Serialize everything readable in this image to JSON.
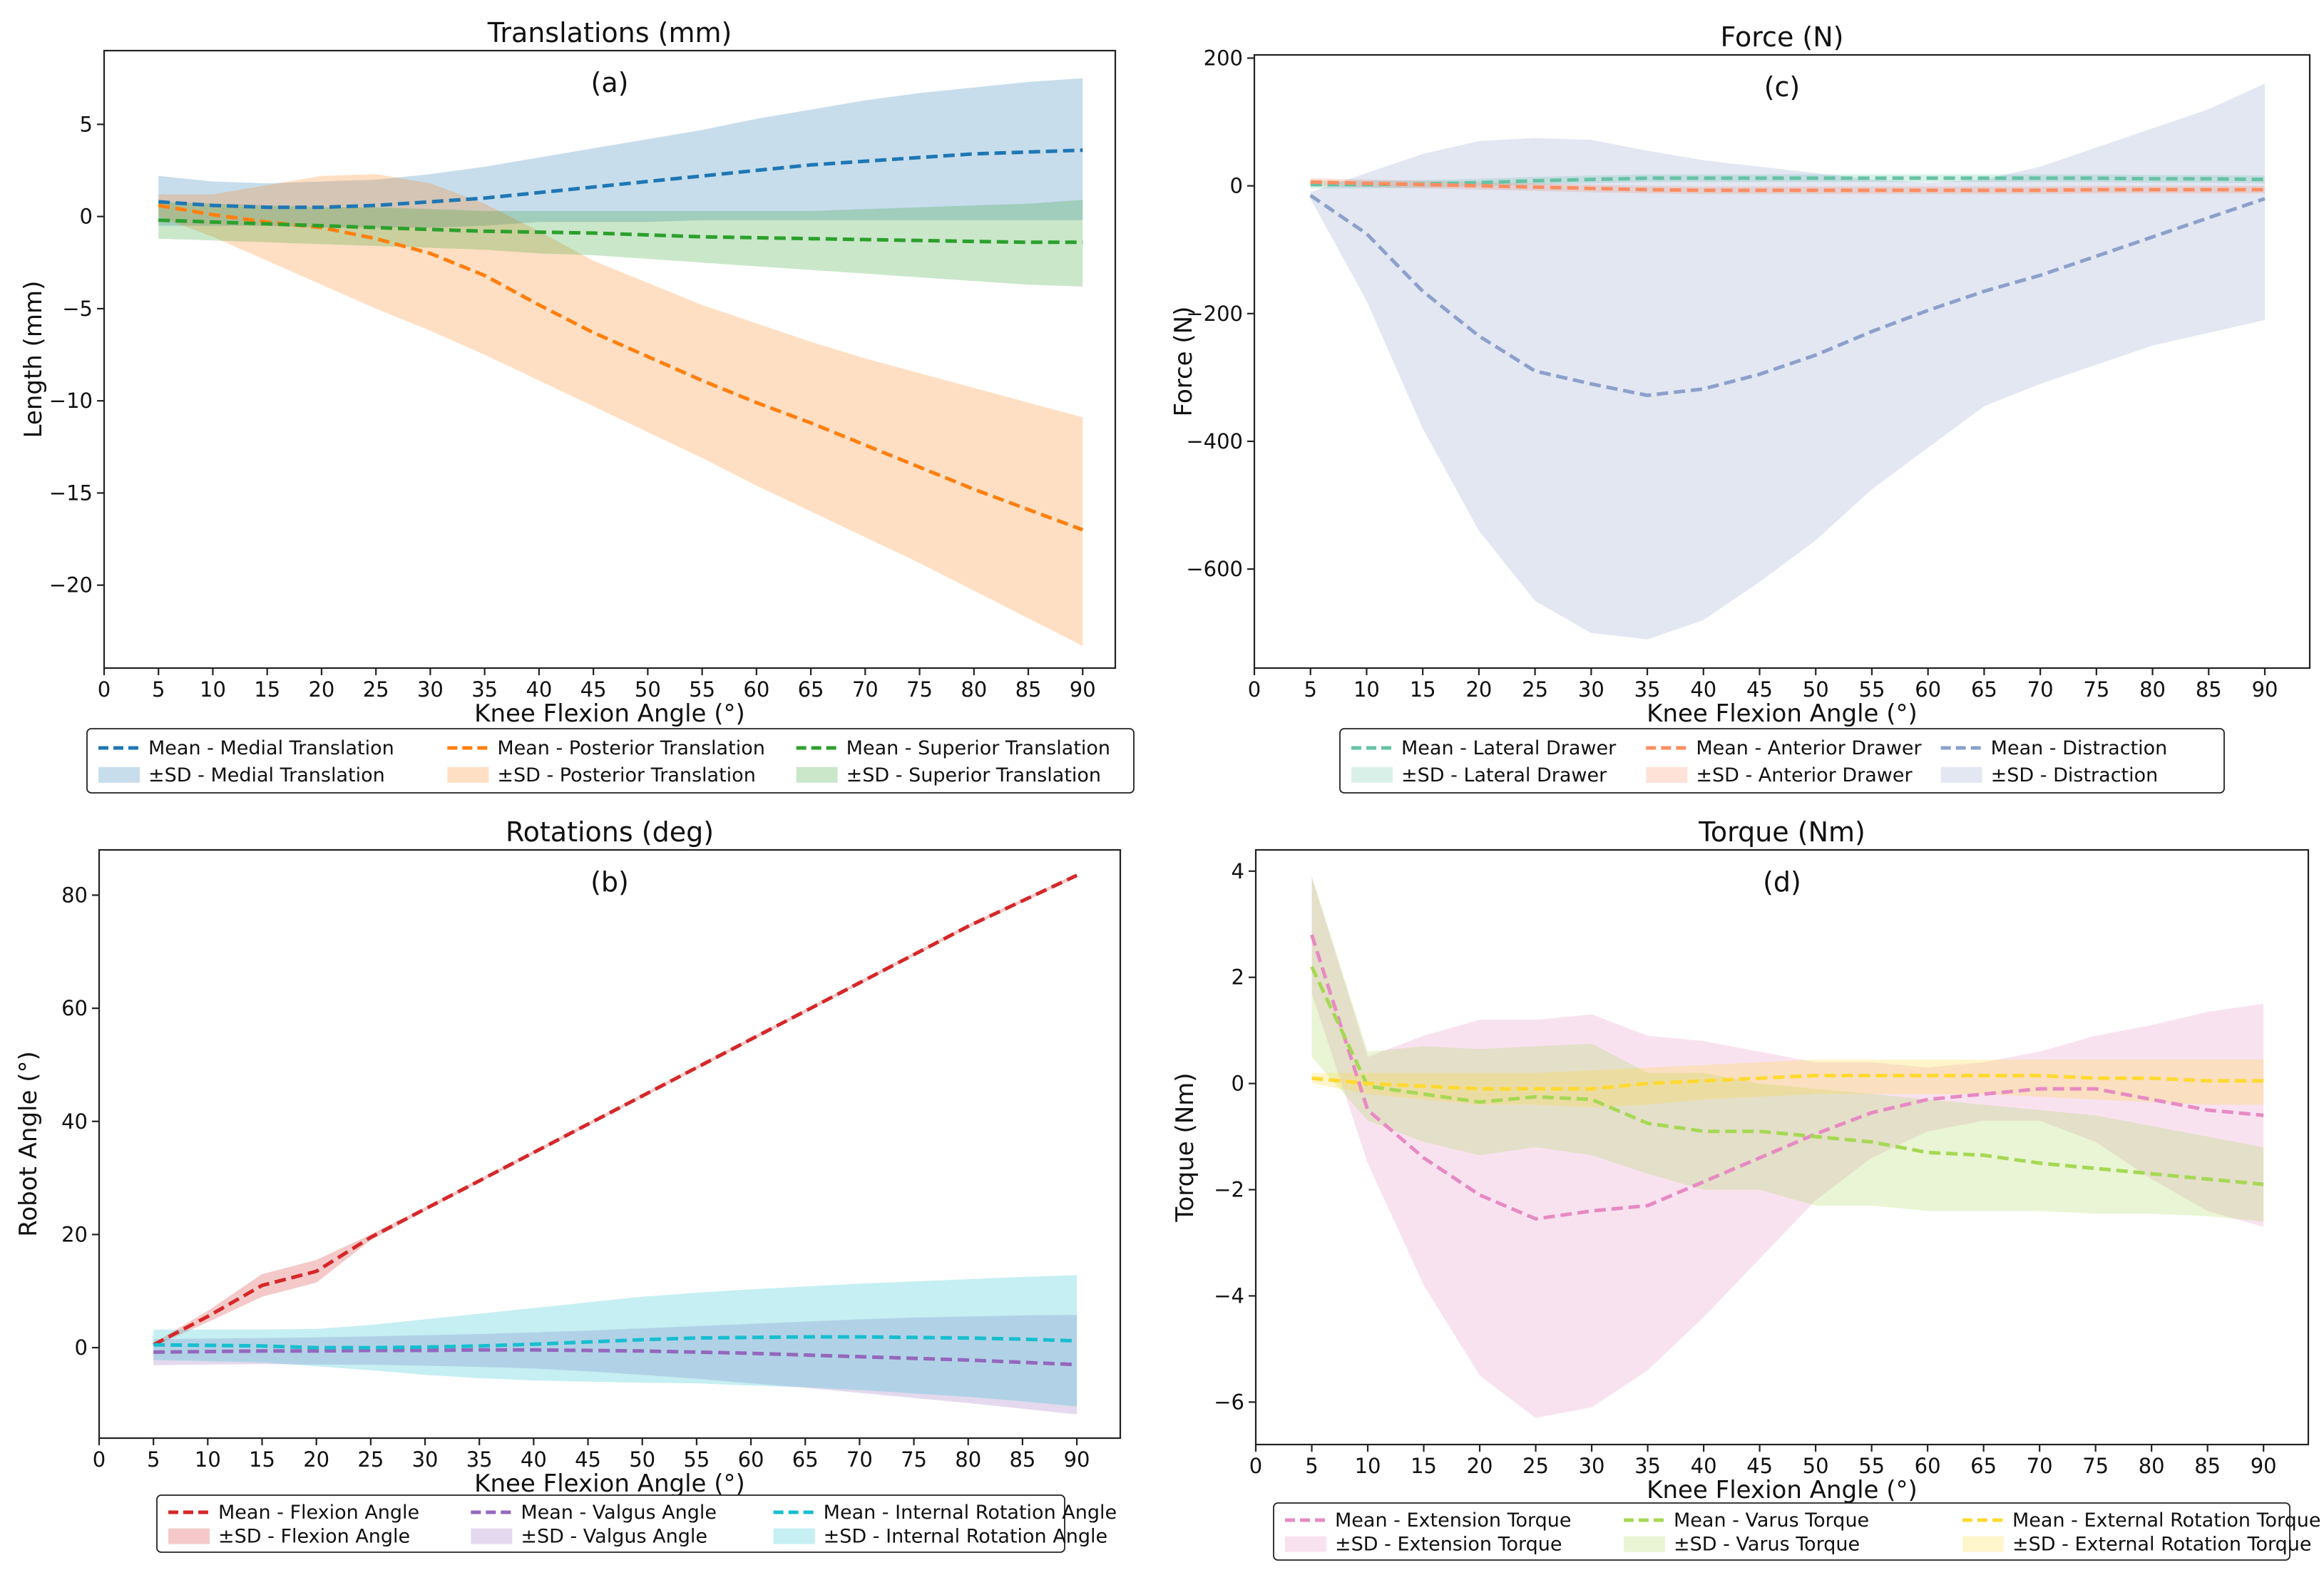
{
  "chart_data": [
    {
      "type": "line",
      "id": "translations",
      "title": "Translations (mm)",
      "panel_label": "(a)",
      "xlabel": "Knee Flexion Angle (°)",
      "ylabel": "Length (mm)",
      "xlim": [
        0,
        93
      ],
      "ylim": [
        -24.5,
        9
      ],
      "xticks": [
        0,
        5,
        10,
        15,
        20,
        25,
        30,
        35,
        40,
        45,
        50,
        55,
        60,
        65,
        70,
        75,
        80,
        85,
        90
      ],
      "yticks": [
        5,
        0,
        -5,
        -10,
        -15,
        -20
      ],
      "ytick_labels": [
        "5",
        "0",
        "−5",
        "−10",
        "−15",
        "−20"
      ],
      "x": [
        5,
        10,
        15,
        20,
        25,
        30,
        35,
        40,
        45,
        50,
        55,
        60,
        65,
        70,
        75,
        80,
        85,
        90
      ],
      "series": [
        {
          "name": "Medial Translation",
          "color": "#1f77b4",
          "mean_label": "Mean - Medial Translation",
          "sd_label": "±SD - Medial Translation",
          "mean": [
            0.8,
            0.6,
            0.5,
            0.5,
            0.6,
            0.8,
            1.0,
            1.3,
            1.6,
            1.9,
            2.2,
            2.5,
            2.8,
            3.0,
            3.2,
            3.4,
            3.5,
            3.6
          ],
          "upper": [
            2.2,
            1.9,
            1.8,
            1.9,
            2.0,
            2.3,
            2.7,
            3.2,
            3.7,
            4.2,
            4.7,
            5.3,
            5.8,
            6.3,
            6.7,
            7.0,
            7.3,
            7.5
          ],
          "lower": [
            -0.5,
            -0.5,
            -0.5,
            -0.6,
            -0.6,
            -0.6,
            -0.5,
            -0.3,
            -0.3,
            -0.3,
            -0.2,
            -0.2,
            -0.2,
            -0.2,
            -0.2,
            -0.2,
            -0.2,
            -0.2
          ]
        },
        {
          "name": "Posterior Translation",
          "color": "#ff7f0e",
          "mean_label": "Mean - Posterior Translation",
          "sd_label": "±SD - Posterior Translation",
          "mean": [
            0.6,
            0.1,
            -0.3,
            -0.6,
            -1.2,
            -2.0,
            -3.2,
            -4.8,
            -6.3,
            -7.6,
            -8.9,
            -10.1,
            -11.2,
            -12.4,
            -13.6,
            -14.8,
            -15.9,
            -17.0
          ],
          "upper": [
            1.2,
            1.2,
            1.7,
            2.2,
            2.3,
            1.8,
            0.7,
            -0.8,
            -2.4,
            -3.6,
            -4.8,
            -5.8,
            -6.8,
            -7.7,
            -8.5,
            -9.3,
            -10.1,
            -10.9
          ],
          "lower": [
            0.0,
            -1.1,
            -2.4,
            -3.7,
            -5.0,
            -6.2,
            -7.5,
            -8.9,
            -10.3,
            -11.7,
            -13.1,
            -14.6,
            -16.0,
            -17.4,
            -18.8,
            -20.3,
            -21.8,
            -23.3
          ]
        },
        {
          "name": "Superior Translation",
          "color": "#2ca02c",
          "mean_label": "Mean - Superior Translation",
          "sd_label": "±SD - Superior Translation",
          "mean": [
            -0.2,
            -0.3,
            -0.4,
            -0.5,
            -0.6,
            -0.7,
            -0.8,
            -0.85,
            -0.9,
            -1.0,
            -1.1,
            -1.15,
            -1.2,
            -1.25,
            -1.3,
            -1.35,
            -1.4,
            -1.4
          ],
          "upper": [
            0.8,
            0.7,
            0.6,
            0.5,
            0.5,
            0.4,
            0.3,
            0.3,
            0.3,
            0.3,
            0.3,
            0.3,
            0.3,
            0.4,
            0.5,
            0.6,
            0.7,
            0.9
          ],
          "lower": [
            -1.2,
            -1.3,
            -1.4,
            -1.5,
            -1.6,
            -1.7,
            -1.8,
            -2.0,
            -2.1,
            -2.3,
            -2.5,
            -2.7,
            -2.9,
            -3.1,
            -3.3,
            -3.5,
            -3.7,
            -3.8
          ]
        }
      ]
    },
    {
      "type": "line",
      "id": "force",
      "title": "Force (N)",
      "panel_label": "(c)",
      "xlabel": "Knee Flexion Angle (°)",
      "ylabel": "Force (N)",
      "xlim": [
        0,
        94
      ],
      "ylim": [
        -755,
        205
      ],
      "xticks": [
        0,
        5,
        10,
        15,
        20,
        25,
        30,
        35,
        40,
        45,
        50,
        55,
        60,
        65,
        70,
        75,
        80,
        85,
        90
      ],
      "yticks": [
        200,
        0,
        -200,
        -400,
        -600
      ],
      "ytick_labels": [
        "200",
        "0",
        "−200",
        "−400",
        "−600"
      ],
      "x": [
        5,
        10,
        15,
        20,
        25,
        30,
        35,
        40,
        45,
        50,
        55,
        60,
        65,
        70,
        75,
        80,
        85,
        90
      ],
      "series": [
        {
          "name": "Lateral Drawer",
          "color": "#66c2a5",
          "mean_label": "Mean - Lateral Drawer",
          "sd_label": "±SD - Lateral Drawer",
          "mean": [
            2,
            2,
            3,
            5,
            8,
            10,
            12,
            12,
            12,
            12,
            12,
            12,
            12,
            12,
            12,
            11,
            11,
            10
          ],
          "upper": [
            8,
            8,
            9,
            11,
            14,
            16,
            18,
            18,
            18,
            18,
            18,
            18,
            18,
            18,
            18,
            17,
            17,
            16
          ],
          "lower": [
            -4,
            -4,
            -3,
            -1,
            2,
            4,
            6,
            6,
            6,
            6,
            6,
            6,
            6,
            6,
            6,
            5,
            5,
            4
          ]
        },
        {
          "name": "Anterior Drawer",
          "color": "#fc8d62",
          "mean_label": "Mean - Anterior Drawer",
          "sd_label": "±SD - Anterior Drawer",
          "mean": [
            6,
            4,
            2,
            0,
            -2,
            -4,
            -6,
            -7,
            -7,
            -7,
            -7,
            -7,
            -7,
            -7,
            -6,
            -6,
            -6,
            -6
          ],
          "upper": [
            12,
            10,
            8,
            6,
            4,
            2,
            0,
            -1,
            -1,
            -1,
            -1,
            -1,
            -1,
            -1,
            0,
            0,
            0,
            0
          ],
          "lower": [
            0,
            -2,
            -4,
            -6,
            -8,
            -10,
            -12,
            -13,
            -13,
            -13,
            -13,
            -13,
            -13,
            -13,
            -12,
            -12,
            -12,
            -12
          ]
        },
        {
          "name": "Distraction",
          "color": "#8da0cb",
          "mean_label": "Mean - Distraction",
          "sd_label": "±SD - Distraction",
          "mean": [
            -15,
            -75,
            -165,
            -235,
            -290,
            -310,
            -328,
            -318,
            -295,
            -265,
            -228,
            -195,
            -165,
            -140,
            -110,
            -80,
            -50,
            -20
          ],
          "upper": [
            -10,
            20,
            50,
            70,
            75,
            72,
            55,
            40,
            30,
            20,
            10,
            5,
            10,
            30,
            60,
            90,
            120,
            160
          ],
          "lower": [
            -20,
            -180,
            -380,
            -540,
            -650,
            -700,
            -710,
            -680,
            -620,
            -555,
            -475,
            -410,
            -345,
            -310,
            -280,
            -250,
            -230,
            -210
          ]
        }
      ]
    },
    {
      "type": "line",
      "id": "rotations",
      "title": "Rotations (deg)",
      "panel_label": "(b)",
      "xlabel": "Knee Flexion Angle (°)",
      "ylabel": "Robot Angle (°)",
      "xlim": [
        0,
        94
      ],
      "ylim": [
        -16,
        88
      ],
      "xticks": [
        0,
        5,
        10,
        15,
        20,
        25,
        30,
        35,
        40,
        45,
        50,
        55,
        60,
        65,
        70,
        75,
        80,
        85,
        90
      ],
      "yticks": [
        80,
        60,
        40,
        20,
        0
      ],
      "ytick_labels": [
        "80",
        "60",
        "40",
        "20",
        "0"
      ],
      "x": [
        5,
        10,
        15,
        20,
        25,
        30,
        35,
        40,
        45,
        50,
        55,
        60,
        65,
        70,
        75,
        80,
        85,
        90
      ],
      "series": [
        {
          "name": "Flexion Angle",
          "color": "#d62728",
          "mean_label": "Mean - Flexion Angle",
          "sd_label": "±SD - Flexion Angle",
          "mean": [
            0.5,
            5.5,
            11,
            13.5,
            19.5,
            24.5,
            29.5,
            34.5,
            39.5,
            44.5,
            49.5,
            54.5,
            59.5,
            64.5,
            69.5,
            74.5,
            79,
            83.5
          ],
          "upper": [
            0.8,
            6.5,
            13,
            15.5,
            20,
            24.8,
            29.8,
            34.8,
            39.8,
            44.8,
            49.8,
            54.8,
            59.8,
            64.8,
            69.8,
            74.8,
            79.3,
            83.8
          ],
          "lower": [
            0.2,
            4.5,
            9,
            11.5,
            19,
            24.2,
            29.2,
            34.2,
            39.2,
            44.2,
            49.2,
            54.2,
            59.2,
            64.2,
            69.2,
            74.2,
            78.7,
            83.2
          ]
        },
        {
          "name": "Valgus Angle",
          "color": "#9467bd",
          "mean_label": "Mean - Valgus Angle",
          "sd_label": "±SD - Valgus Angle",
          "mean": [
            -0.8,
            -0.7,
            -0.6,
            -0.6,
            -0.5,
            -0.5,
            -0.4,
            -0.4,
            -0.5,
            -0.6,
            -0.8,
            -1.0,
            -1.3,
            -1.6,
            -1.9,
            -2.2,
            -2.6,
            -3.0
          ],
          "upper": [
            1.5,
            1.6,
            1.7,
            1.8,
            2.0,
            2.2,
            2.4,
            2.7,
            3.0,
            3.4,
            3.8,
            4.2,
            4.6,
            5.0,
            5.3,
            5.5,
            5.7,
            5.8
          ],
          "lower": [
            -3.1,
            -3.0,
            -2.9,
            -3.0,
            -3.0,
            -3.2,
            -3.4,
            -3.7,
            -4.2,
            -4.8,
            -5.5,
            -6.3,
            -7.1,
            -8.0,
            -8.9,
            -9.8,
            -10.8,
            -11.8
          ]
        },
        {
          "name": "Internal Rotation Angle",
          "color": "#17becf",
          "mean_label": "Mean - Internal Rotation Angle",
          "sd_label": "±SD - Internal Rotation Angle",
          "mean": [
            0.5,
            0.4,
            0.3,
            0.0,
            0.0,
            0.1,
            0.3,
            0.6,
            1.0,
            1.4,
            1.7,
            1.8,
            1.9,
            1.9,
            1.8,
            1.7,
            1.5,
            1.2
          ],
          "upper": [
            3.2,
            3.2,
            3.2,
            3.3,
            4.0,
            5.0,
            6.0,
            7.0,
            8.0,
            9.0,
            9.7,
            10.3,
            10.8,
            11.3,
            11.7,
            12.1,
            12.5,
            12.8
          ],
          "lower": [
            -2.2,
            -2.4,
            -2.6,
            -3.3,
            -4.0,
            -4.8,
            -5.4,
            -5.8,
            -6.0,
            -6.2,
            -6.3,
            -6.7,
            -7.0,
            -7.5,
            -8.1,
            -8.7,
            -9.5,
            -10.4
          ]
        }
      ]
    },
    {
      "type": "line",
      "id": "torque",
      "title": "Torque (Nm)",
      "panel_label": "(d)",
      "xlabel": "Knee Flexion Angle (°)",
      "ylabel": "Torque (Nm)",
      "xlim": [
        0,
        94
      ],
      "ylim": [
        -6.8,
        4.4
      ],
      "xticks": [
        0,
        5,
        10,
        15,
        20,
        25,
        30,
        35,
        40,
        45,
        50,
        55,
        60,
        65,
        70,
        75,
        80,
        85,
        90
      ],
      "yticks": [
        4,
        2,
        0,
        -2,
        -4,
        -6
      ],
      "ytick_labels": [
        "4",
        "2",
        "0",
        "−2",
        "−4",
        "−6"
      ],
      "x": [
        5,
        10,
        15,
        20,
        25,
        30,
        35,
        40,
        45,
        50,
        55,
        60,
        65,
        70,
        75,
        80,
        85,
        90
      ],
      "series": [
        {
          "name": "Extension Torque",
          "color": "#e78ac3",
          "mean_label": "Mean - Extension Torque",
          "sd_label": "±SD - Extension Torque",
          "mean": [
            2.8,
            -0.5,
            -1.4,
            -2.1,
            -2.55,
            -2.4,
            -2.3,
            -1.85,
            -1.4,
            -0.95,
            -0.55,
            -0.3,
            -0.2,
            -0.1,
            -0.1,
            -0.3,
            -0.5,
            -0.6
          ],
          "upper": [
            3.9,
            0.5,
            0.9,
            1.2,
            1.2,
            1.3,
            0.9,
            0.8,
            0.6,
            0.4,
            0.4,
            0.3,
            0.4,
            0.6,
            0.9,
            1.1,
            1.35,
            1.5
          ],
          "lower": [
            1.7,
            -1.5,
            -3.8,
            -5.5,
            -6.3,
            -6.1,
            -5.4,
            -4.4,
            -3.3,
            -2.2,
            -1.4,
            -0.9,
            -0.7,
            -0.7,
            -1.1,
            -1.8,
            -2.4,
            -2.7
          ]
        },
        {
          "name": "Varus Torque",
          "color": "#a6d854",
          "mean_label": "Mean - Varus Torque",
          "sd_label": "±SD - Varus Torque",
          "mean": [
            2.2,
            -0.05,
            -0.2,
            -0.35,
            -0.25,
            -0.3,
            -0.75,
            -0.9,
            -0.9,
            -1.0,
            -1.1,
            -1.3,
            -1.35,
            -1.5,
            -1.6,
            -1.7,
            -1.8,
            -1.9
          ],
          "upper": [
            3.9,
            0.6,
            0.7,
            0.65,
            0.7,
            0.75,
            0.2,
            0.2,
            0.0,
            -0.1,
            -0.2,
            -0.3,
            -0.4,
            -0.5,
            -0.6,
            -0.8,
            -1.0,
            -1.2
          ],
          "lower": [
            0.5,
            -0.7,
            -1.1,
            -1.35,
            -1.2,
            -1.35,
            -1.7,
            -2.0,
            -2.0,
            -2.3,
            -2.3,
            -2.4,
            -2.4,
            -2.4,
            -2.45,
            -2.45,
            -2.5,
            -2.6
          ]
        },
        {
          "name": "External Rotation Torque",
          "color": "#ffd92f",
          "mean_label": "Mean - External Rotation Torque",
          "sd_label": "±SD - External Rotation Torque",
          "mean": [
            0.1,
            0.0,
            -0.05,
            -0.1,
            -0.1,
            -0.1,
            0.0,
            0.05,
            0.1,
            0.15,
            0.15,
            0.15,
            0.15,
            0.15,
            0.1,
            0.1,
            0.05,
            0.05
          ],
          "upper": [
            0.2,
            0.2,
            0.2,
            0.2,
            0.2,
            0.25,
            0.3,
            0.35,
            0.4,
            0.45,
            0.45,
            0.45,
            0.45,
            0.45,
            0.45,
            0.45,
            0.45,
            0.45
          ],
          "lower": [
            0.0,
            -0.2,
            -0.3,
            -0.4,
            -0.4,
            -0.45,
            -0.4,
            -0.3,
            -0.25,
            -0.2,
            -0.2,
            -0.2,
            -0.2,
            -0.25,
            -0.3,
            -0.35,
            -0.4,
            -0.4
          ]
        }
      ]
    }
  ]
}
